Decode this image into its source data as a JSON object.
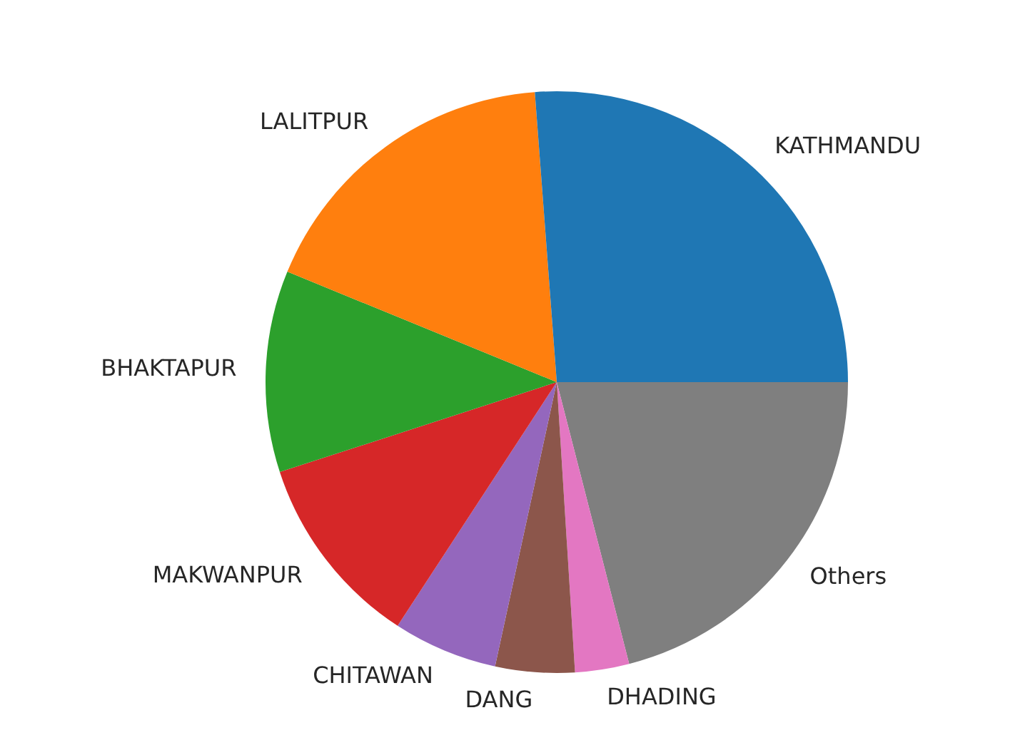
{
  "chart_data": {
    "type": "pie",
    "categories": [
      "KATHMANDU",
      "LALITPUR",
      "BHAKTAPUR",
      "MAKWANPUR",
      "CHITAWAN",
      "DANG",
      "DHADING",
      "Others"
    ],
    "values": [
      26.2,
      17.6,
      11.2,
      10.8,
      5.8,
      4.4,
      3.0,
      21.0
    ],
    "colors": [
      "#1f77b4",
      "#ff7f0e",
      "#2ca02c",
      "#d62728",
      "#9467bd",
      "#8c564b",
      "#e377c2",
      "#7f7f7f"
    ]
  }
}
